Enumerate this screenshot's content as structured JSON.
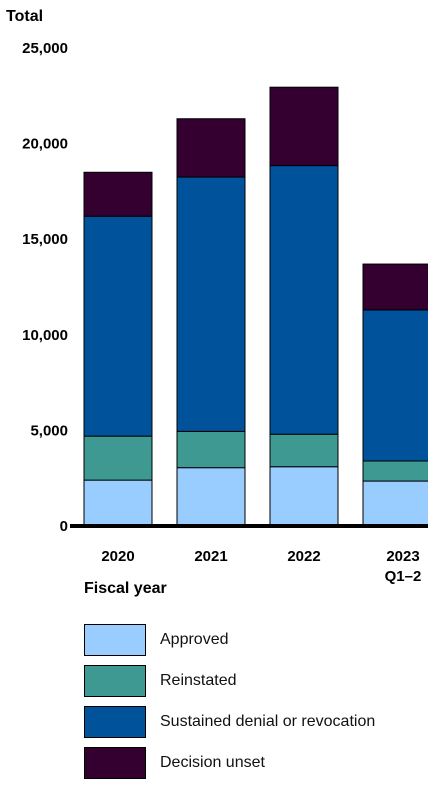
{
  "chart_data": {
    "type": "bar",
    "stacked": true,
    "ylabel": "Total",
    "xlabel": "Fiscal year",
    "ylim": [
      0,
      25000
    ],
    "yticks": [
      "0",
      "5,000",
      "10,000",
      "15,000",
      "20,000",
      "25,000"
    ],
    "ytick_values": [
      0,
      5000,
      10000,
      15000,
      20000,
      25000
    ],
    "categories": [
      [
        "2020"
      ],
      [
        "2021"
      ],
      [
        "2022"
      ],
      [
        "2023",
        "Q1–2"
      ]
    ],
    "series": [
      {
        "name": "Approved",
        "color": "#99ccff",
        "values": [
          2400,
          3050,
          3100,
          2350
        ]
      },
      {
        "name": "Reinstated",
        "color": "#3d9992",
        "values": [
          2300,
          1900,
          1700,
          1050
        ]
      },
      {
        "name": "Sustained denial or revocation",
        "color": "#00539b",
        "values": [
          11500,
          13300,
          14050,
          7900
        ]
      },
      {
        "name": "Decision unset",
        "color": "#33002f",
        "values": [
          2300,
          3050,
          4100,
          2400
        ]
      }
    ],
    "legend_position": "bottom-left",
    "grid": false
  }
}
